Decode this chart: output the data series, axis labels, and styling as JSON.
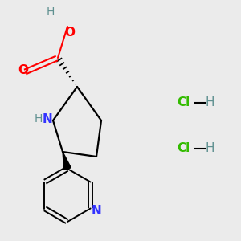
{
  "background_color": "#ebebeb",
  "colors": {
    "C": "#000000",
    "N": "#3333ff",
    "O": "#ff0000",
    "Cl": "#33bb00",
    "H_teal": "#5f9090",
    "bond": "#000000"
  },
  "font_size_atom": 11,
  "font_size_hcl": 11,
  "hcl1": [
    0.735,
    0.385
  ],
  "hcl2": [
    0.735,
    0.575
  ]
}
